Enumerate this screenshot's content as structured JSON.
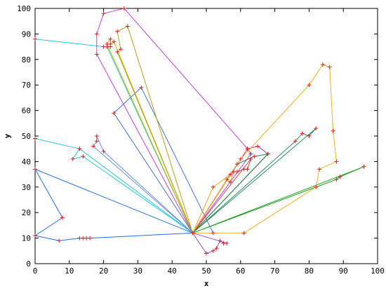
{
  "chart_data": {
    "type": "line",
    "title": "",
    "xlabel": "x",
    "ylabel": "y",
    "xlim": [
      0,
      100
    ],
    "ylim": [
      0,
      100
    ],
    "xticks": [
      0,
      10,
      20,
      30,
      40,
      50,
      60,
      70,
      80,
      90,
      100
    ],
    "yticks": [
      0,
      10,
      20,
      30,
      40,
      50,
      60,
      70,
      80,
      90,
      100
    ],
    "grid": false,
    "depot": [
      46,
      12
    ],
    "marker_color": "#e02020",
    "series": [
      {
        "color": "#1f6fe0",
        "points": [
          [
            46,
            12
          ],
          [
            0,
            37
          ],
          [
            8,
            18
          ],
          [
            0,
            11
          ],
          [
            7,
            9
          ],
          [
            13,
            10
          ],
          [
            14,
            10
          ],
          [
            15,
            10
          ],
          [
            16,
            10
          ],
          [
            46,
            12
          ]
        ]
      },
      {
        "color": "#22c8d8",
        "points": [
          [
            46,
            12
          ],
          [
            13,
            45
          ],
          [
            0,
            49
          ],
          [
            0,
            49
          ]
        ]
      },
      {
        "color": "#22c8d8",
        "points": [
          [
            46,
            12
          ],
          [
            14,
            42
          ],
          [
            11,
            41
          ],
          [
            13,
            45
          ]
        ]
      },
      {
        "color": "#22c8d8",
        "points": [
          [
            46,
            12
          ],
          [
            21,
            85
          ],
          [
            22,
            85
          ],
          [
            20,
            85
          ],
          [
            0,
            88
          ]
        ]
      },
      {
        "color": "#6d8fd8",
        "points": [
          [
            46,
            12
          ],
          [
            17,
            46
          ],
          [
            18,
            48
          ],
          [
            18,
            50
          ],
          [
            20,
            44
          ],
          [
            46,
            12
          ]
        ]
      },
      {
        "color": "#4a72c8",
        "points": [
          [
            46,
            12
          ],
          [
            23,
            59
          ],
          [
            31,
            69
          ],
          [
            52,
            12
          ]
        ]
      },
      {
        "color": "#c040d8",
        "points": [
          [
            46,
            12
          ],
          [
            18,
            82
          ],
          [
            18,
            90
          ],
          [
            20,
            98
          ],
          [
            26,
            100
          ],
          [
            62,
            45
          ],
          [
            63,
            43
          ],
          [
            46,
            12
          ]
        ]
      },
      {
        "color": "#c8b400",
        "points": [
          [
            46,
            12
          ],
          [
            21,
            86
          ],
          [
            22,
            88
          ],
          [
            22,
            86
          ],
          [
            23,
            87
          ],
          [
            46,
            12
          ]
        ]
      },
      {
        "color": "#b8a010",
        "points": [
          [
            46,
            12
          ],
          [
            24,
            83
          ],
          [
            25,
            84
          ],
          [
            24,
            91
          ],
          [
            27,
            93
          ],
          [
            46,
            12
          ]
        ]
      },
      {
        "color": "#d84848",
        "points": [
          [
            46,
            12
          ],
          [
            57,
            35
          ],
          [
            58,
            36
          ],
          [
            59,
            36
          ],
          [
            61,
            37
          ],
          [
            62,
            37
          ],
          [
            63,
            41
          ],
          [
            46,
            12
          ]
        ]
      },
      {
        "color": "#a050c8",
        "points": [
          [
            46,
            12
          ],
          [
            50,
            4
          ],
          [
            52,
            5
          ],
          [
            53,
            6
          ],
          [
            54,
            9
          ],
          [
            55,
            8
          ],
          [
            56,
            8
          ],
          [
            46,
            12
          ]
        ]
      },
      {
        "color": "#c030a0",
        "points": [
          [
            46,
            12
          ],
          [
            62,
            45
          ],
          [
            65,
            46
          ],
          [
            68,
            43
          ],
          [
            46,
            12
          ]
        ]
      },
      {
        "color": "#208040",
        "points": [
          [
            46,
            12
          ],
          [
            59,
            39
          ],
          [
            64,
            42
          ],
          [
            68,
            43
          ],
          [
            46,
            12
          ]
        ]
      },
      {
        "color": "#20a020",
        "points": [
          [
            46,
            12
          ],
          [
            96,
            38
          ],
          [
            89,
            34
          ],
          [
            88,
            33
          ],
          [
            46,
            12
          ]
        ]
      },
      {
        "color": "#f0b020",
        "points": [
          [
            46,
            12
          ],
          [
            61,
            12
          ],
          [
            82,
            30
          ],
          [
            83,
            37
          ],
          [
            88,
            40
          ],
          [
            87,
            52
          ],
          [
            86,
            77
          ],
          [
            84,
            78
          ],
          [
            80,
            70
          ],
          [
            60,
            41
          ],
          [
            46,
            12
          ]
        ]
      },
      {
        "color": "#f0a020",
        "points": [
          [
            46,
            12
          ],
          [
            52,
            30
          ],
          [
            58,
            36
          ],
          [
            57,
            32
          ],
          [
            56,
            33
          ],
          [
            46,
            12
          ]
        ]
      },
      {
        "color": "#2a8a5a",
        "points": [
          [
            46,
            12
          ],
          [
            76,
            48
          ],
          [
            78,
            51
          ],
          [
            80,
            50
          ],
          [
            82,
            53
          ],
          [
            46,
            12
          ]
        ]
      }
    ]
  }
}
